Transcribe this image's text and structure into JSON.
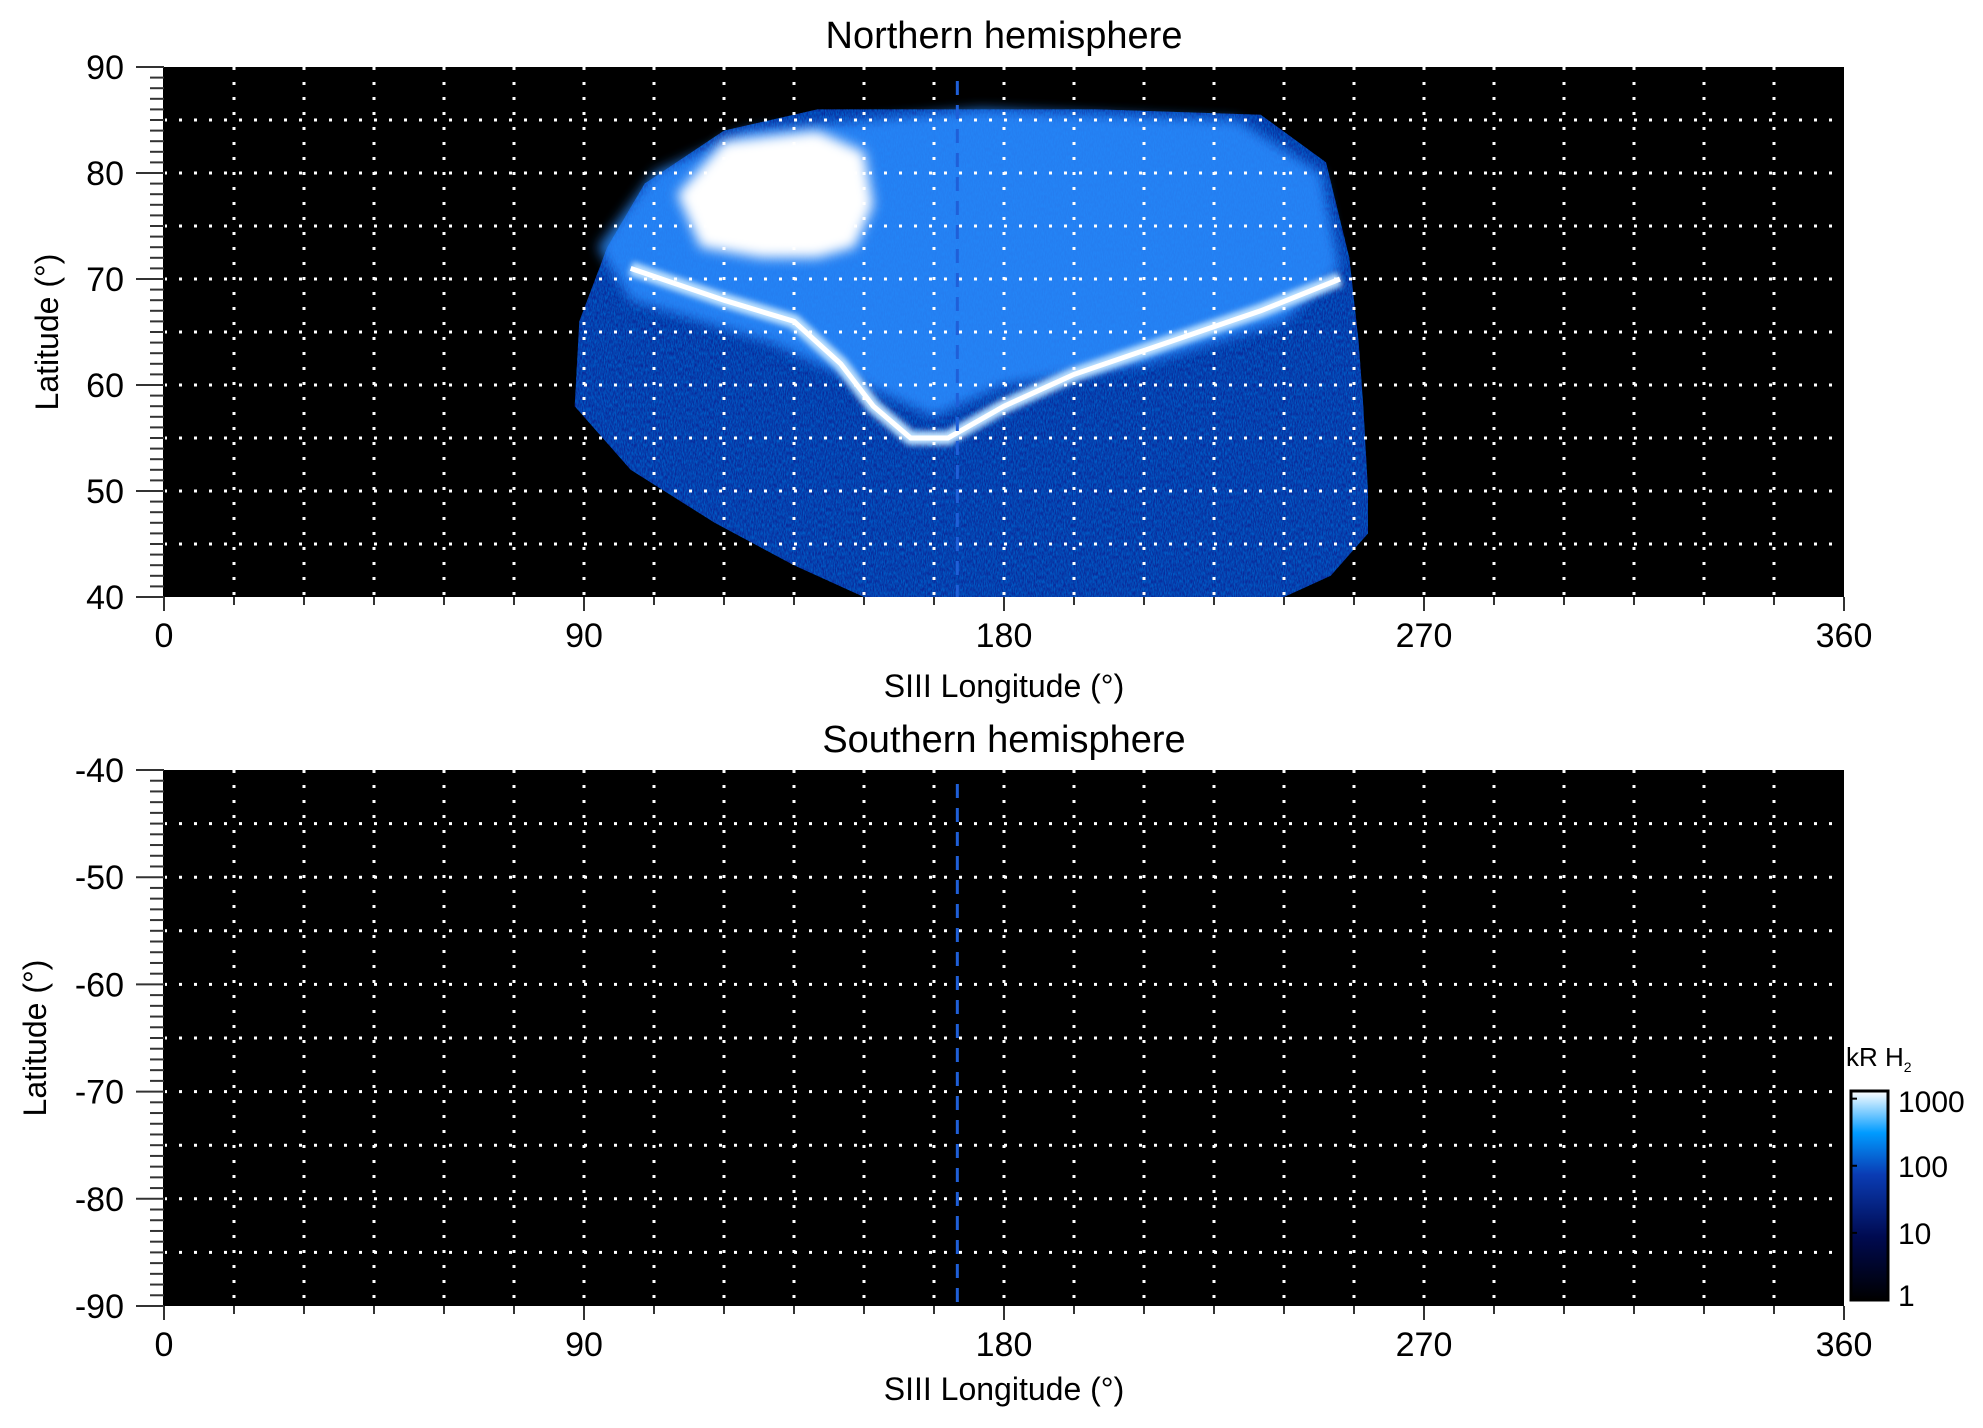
{
  "chart_data": [
    {
      "type": "heatmap",
      "title": "Northern hemisphere",
      "xlabel": "SIII Longitude (°)",
      "ylabel": "Latitude (°)",
      "xlim": [
        0,
        360
      ],
      "ylim": [
        40,
        90
      ],
      "xticks": [
        "0",
        "90",
        "180",
        "270",
        "360"
      ],
      "yticks": [
        "40",
        "50",
        "60",
        "70",
        "80",
        "90"
      ],
      "grid": "dotted white, 15° longitude, 5° latitude",
      "reference_longitude_dashed": 170,
      "emission": "bright auroral oval spanning ~90–260° longitude, 40–86° latitude"
    },
    {
      "type": "heatmap",
      "title": "Southern hemisphere",
      "xlabel": "SIII Longitude (°)",
      "ylabel": "Latitude (°)",
      "xlim": [
        0,
        360
      ],
      "ylim": [
        -90,
        -40
      ],
      "xticks": [
        "0",
        "90",
        "180",
        "270",
        "360"
      ],
      "yticks": [
        "-90",
        "-80",
        "-70",
        "-60",
        "-50",
        "-40"
      ],
      "grid": "dotted white, 15° longitude, 5° latitude",
      "reference_longitude_dashed": 170,
      "emission": "none"
    }
  ],
  "colorbar": {
    "label": "kR H",
    "label_sub": "2",
    "scale": "log",
    "ticks": [
      "1",
      "10",
      "100",
      "1000"
    ],
    "colors": [
      "#000000",
      "#000a50",
      "#0a3cb4",
      "#009bff",
      "#ffffff"
    ]
  }
}
